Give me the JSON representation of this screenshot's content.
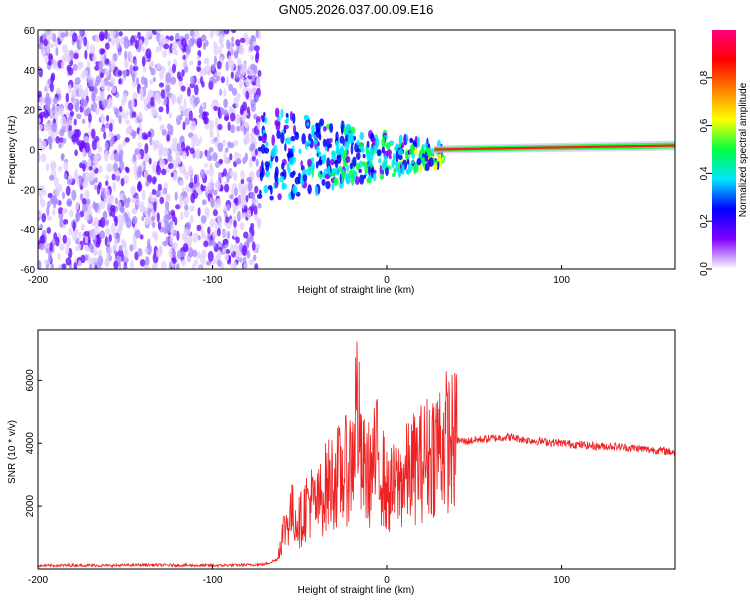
{
  "title": "GN05.2026.037.00.09.E16",
  "chart_data": [
    {
      "type": "heatmap",
      "name": "spectrogram",
      "xlabel": "Height of straight line (km)",
      "ylabel": "Frequency (Hz)",
      "xlim": [
        -200,
        165
      ],
      "ylim": [
        -60,
        60
      ],
      "xticks": [
        -200,
        -100,
        0,
        100
      ],
      "yticks": [
        -60,
        -40,
        -20,
        0,
        20,
        40,
        60
      ],
      "xtick_labels": [
        "-200",
        "-100",
        "0",
        "100"
      ],
      "ytick_labels": [
        "-60",
        "-40",
        "-20",
        "0",
        "20",
        "40",
        "60"
      ],
      "noise_region_km": [
        -200,
        -73
      ],
      "signal_start_km": -73,
      "line_frequency_hz": 0,
      "line_end_frequency_hz": 2,
      "colorbar": {
        "label": "Normalized spectral amplitude",
        "range": [
          0,
          1
        ],
        "ticks": [
          0.0,
          0.2,
          0.4,
          0.6,
          0.8
        ],
        "tick_labels": [
          "0.0",
          "0.2",
          "0.4",
          "0.6",
          "0.8"
        ],
        "colormap": [
          "#ffffff",
          "#7f00ff",
          "#0000ff",
          "#00e5ff",
          "#00ff40",
          "#ffff00",
          "#ff8000",
          "#ff0000",
          "#ff0080"
        ]
      }
    },
    {
      "type": "line",
      "name": "snr",
      "xlabel": "Height of straight line (km)",
      "ylabel": "SNR (10 * v/v)",
      "xlim": [
        -200,
        165
      ],
      "ylim": [
        0,
        7600
      ],
      "xticks": [
        -200,
        -100,
        0,
        100
      ],
      "yticks": [
        2000,
        4000,
        6000
      ],
      "xtick_labels": [
        "-200",
        "-100",
        "0",
        "100"
      ],
      "ytick_labels": [
        "2000",
        "4000",
        "6000"
      ],
      "color": "#ee2222",
      "series": [
        {
          "name": "SNR",
          "x": [
            -200,
            -180,
            -160,
            -140,
            -120,
            -100,
            -80,
            -70,
            -63,
            -60,
            -55,
            -50,
            -45,
            -40,
            -35,
            -30,
            -25,
            -20,
            -17,
            -15,
            -10,
            -5,
            0,
            5,
            10,
            15,
            20,
            25,
            30,
            35,
            38,
            40,
            45,
            50,
            60,
            70,
            80,
            90,
            100,
            110,
            120,
            130,
            140,
            150,
            160,
            165
          ],
          "y": [
            100,
            120,
            110,
            130,
            120,
            110,
            130,
            150,
            300,
            1100,
            1800,
            1500,
            2200,
            2000,
            2600,
            2900,
            3000,
            3400,
            5500,
            3200,
            3000,
            3600,
            2400,
            2600,
            2900,
            3200,
            3400,
            3700,
            4000,
            4100,
            4000,
            4100,
            4050,
            4100,
            4150,
            4200,
            4100,
            4050,
            4000,
            3950,
            3900,
            3900,
            3850,
            3800,
            3750,
            3700
          ]
        }
      ]
    }
  ]
}
